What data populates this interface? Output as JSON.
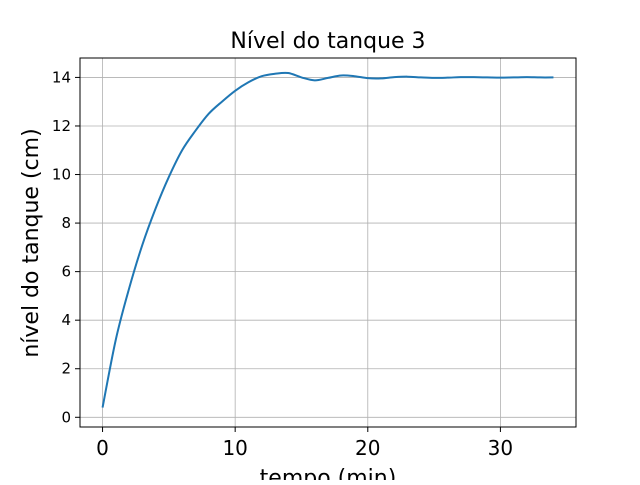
{
  "chart_data": {
    "type": "line",
    "title": "Nível do tanque 3",
    "xlabel": "tempo (min)",
    "ylabel": "nível do tanque (cm)",
    "xlim": [
      -1.7,
      35.7
    ],
    "ylim": [
      -0.4,
      14.8
    ],
    "xticks": [
      0,
      10,
      20,
      30
    ],
    "yticks": [
      0,
      2,
      4,
      6,
      8,
      10,
      12,
      14
    ],
    "grid": true,
    "colors": {
      "line": "#1f77b4",
      "grid": "#b0b0b0",
      "axes": "#000000"
    },
    "series": [
      {
        "x": [
          0,
          1,
          2,
          3,
          4,
          5,
          6,
          7,
          8,
          9,
          10,
          11,
          12,
          13,
          14,
          15,
          16,
          17,
          18,
          19,
          20,
          21,
          22,
          23,
          24,
          25,
          26,
          27,
          28,
          29,
          30,
          31,
          32,
          33,
          34
        ],
        "values": [
          0.4,
          3.2,
          5.3,
          7.1,
          8.6,
          9.9,
          11.0,
          11.8,
          12.5,
          13.0,
          13.45,
          13.8,
          14.05,
          14.15,
          14.18,
          14.0,
          13.88,
          13.98,
          14.08,
          14.05,
          13.97,
          13.96,
          14.01,
          14.03,
          14.0,
          13.98,
          13.99,
          14.01,
          14.01,
          14.0,
          13.99,
          14.0,
          14.01,
          14.0,
          14.0
        ]
      }
    ]
  }
}
